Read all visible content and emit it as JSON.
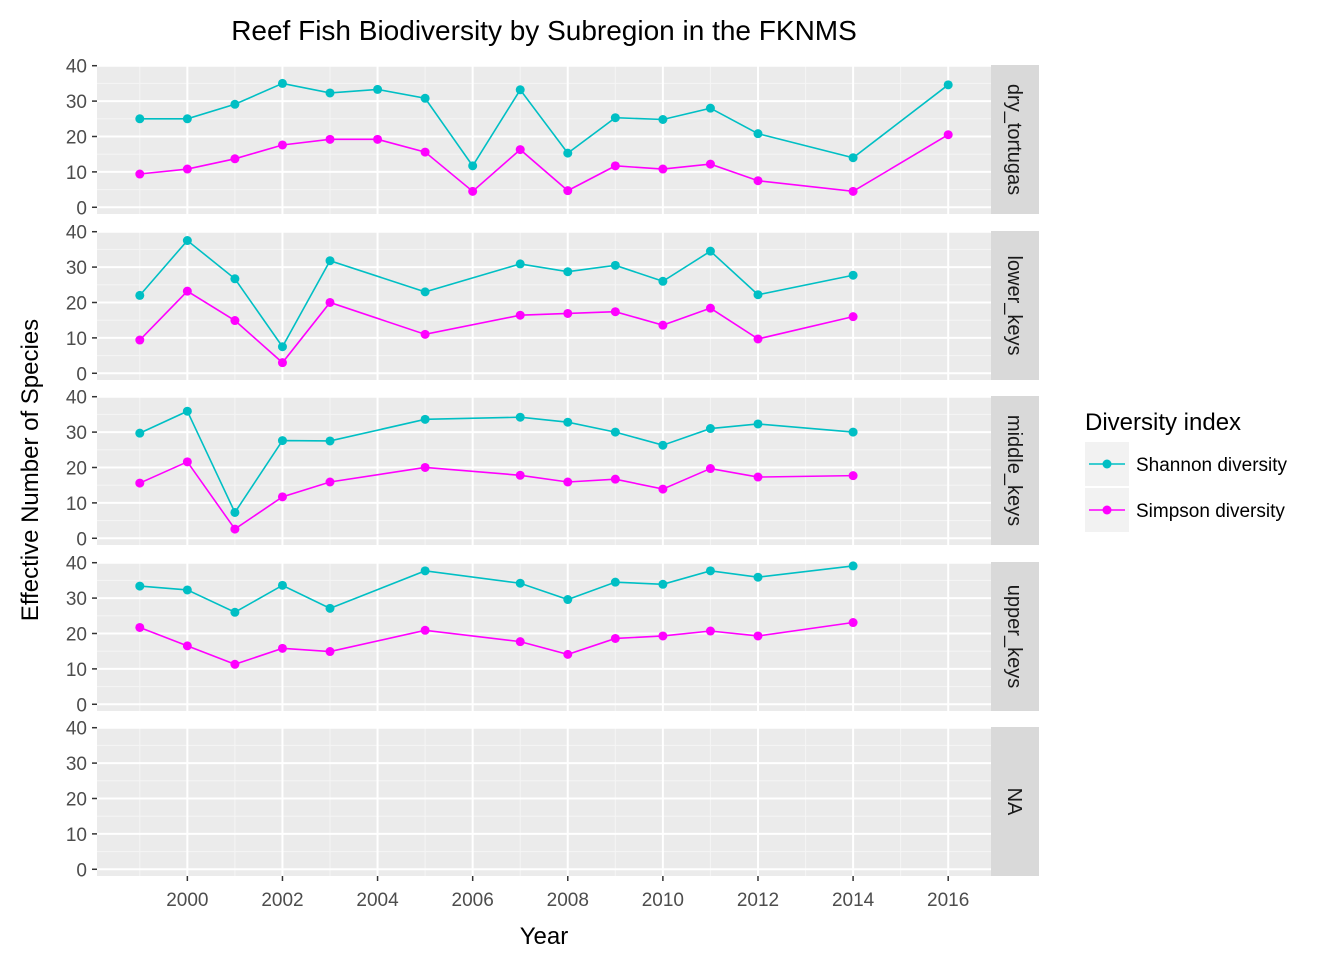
{
  "chart_data": {
    "type": "line",
    "title": "Reef Fish Biodiversity by Subregion in the FKNMS",
    "xlabel": "Year",
    "ylabel": "Effective Number of Species",
    "xlim": [
      1998.1,
      2016.9
    ],
    "ylim": [
      -1.9,
      40.2
    ],
    "x_ticks": [
      "2000",
      "2002",
      "2004",
      "2006",
      "2008",
      "2010",
      "2012",
      "2014",
      "2016"
    ],
    "y_ticks": [
      "0",
      "10",
      "20",
      "30",
      "40"
    ],
    "grid": true,
    "legend": {
      "title": "Diversity index",
      "position": "right"
    },
    "colors": {
      "Shannon diversity": "#00BFC4",
      "Simpson diversity": "#FF00FF"
    },
    "panels": [
      {
        "label": "dry_tortugas",
        "x": [
          1999,
          2000,
          2001,
          2002,
          2003,
          2004,
          2005,
          2006,
          2007,
          2008,
          2009,
          2010,
          2011,
          2012,
          2014,
          2016
        ],
        "series": [
          {
            "name": "Shannon diversity",
            "values": [
              25.0,
              25.0,
              29.1,
              35.0,
              32.3,
              33.3,
              30.8,
              11.7,
              33.2,
              15.3,
              25.3,
              24.8,
              28.0,
              20.8,
              14.0,
              34.6
            ]
          },
          {
            "name": "Simpson diversity",
            "values": [
              9.4,
              10.8,
              13.7,
              17.6,
              19.2,
              19.2,
              15.6,
              4.5,
              16.3,
              4.7,
              11.7,
              10.8,
              12.2,
              7.5,
              4.5,
              20.5
            ]
          }
        ]
      },
      {
        "label": "lower_keys",
        "x": [
          1999,
          2000,
          2001,
          2002,
          2003,
          2005,
          2007,
          2008,
          2009,
          2010,
          2011,
          2012,
          2014
        ],
        "series": [
          {
            "name": "Shannon diversity",
            "values": [
              22.0,
              37.5,
              26.7,
              7.5,
              31.8,
              23.0,
              30.9,
              28.7,
              30.5,
              26.0,
              34.5,
              22.2,
              27.7
            ]
          },
          {
            "name": "Simpson diversity",
            "values": [
              9.4,
              23.2,
              14.9,
              3.0,
              20.0,
              11.0,
              16.4,
              16.9,
              17.4,
              13.6,
              18.4,
              9.7,
              16.0
            ]
          }
        ]
      },
      {
        "label": "middle_keys",
        "x": [
          1999,
          2000,
          2001,
          2002,
          2003,
          2005,
          2007,
          2008,
          2009,
          2010,
          2011,
          2012,
          2014
        ],
        "series": [
          {
            "name": "Shannon diversity",
            "values": [
              29.7,
              35.9,
              7.3,
              27.6,
              27.5,
              33.6,
              34.2,
              32.8,
              30.0,
              26.3,
              31.0,
              32.3,
              30.0
            ]
          },
          {
            "name": "Simpson diversity",
            "values": [
              15.6,
              21.6,
              2.6,
              11.7,
              15.9,
              20.0,
              17.8,
              15.9,
              16.7,
              13.9,
              19.7,
              17.3,
              17.7
            ]
          }
        ]
      },
      {
        "label": "upper_keys",
        "x": [
          1999,
          2000,
          2001,
          2002,
          2003,
          2005,
          2007,
          2008,
          2009,
          2010,
          2011,
          2012,
          2014
        ],
        "series": [
          {
            "name": "Shannon diversity",
            "values": [
              33.4,
              32.3,
              26.0,
              33.6,
              27.1,
              37.7,
              34.2,
              29.6,
              34.5,
              33.9,
              37.7,
              35.9,
              39.1
            ]
          },
          {
            "name": "Simpson diversity",
            "values": [
              21.7,
              16.5,
              11.3,
              15.8,
              14.9,
              20.9,
              17.7,
              14.1,
              18.6,
              19.3,
              20.7,
              19.3,
              23.1
            ]
          }
        ]
      },
      {
        "label": "NA",
        "x": [],
        "series": [
          {
            "name": "Shannon diversity",
            "values": []
          },
          {
            "name": "Simpson diversity",
            "values": []
          }
        ]
      }
    ]
  }
}
